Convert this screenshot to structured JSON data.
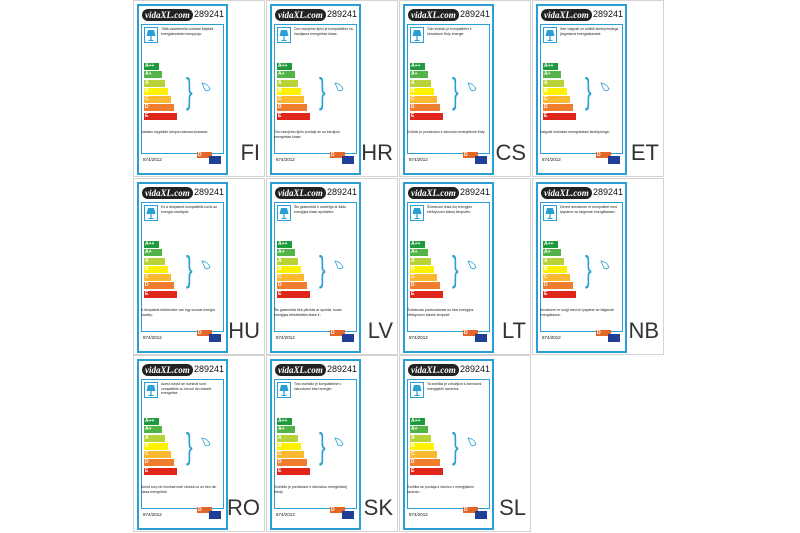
{
  "product_code": "289241",
  "brand": "vidaXL.com",
  "regulation": "874/2012",
  "classes": [
    "A++",
    "A+",
    "A",
    "B",
    "C",
    "D",
    "E"
  ],
  "class_colors": [
    "#1e9a3c",
    "#52b347",
    "#b8d338",
    "#fff200",
    "#fbb831",
    "#ef7d2d",
    "#e0251b"
  ],
  "highlight_class": "D",
  "accent": "#2a9fd3",
  "labels": [
    {
      "lang": "FI",
      "top": "Tällä valaisimella voidaan käyttää energialuokkien lamppuja:",
      "bottom": "Valaisin myydään lampun kanssa luokasta:"
    },
    {
      "lang": "HR",
      "top": "Ovo rasvjetno tijelo je kompatibilno sa žaruljama energetske klase:",
      "bottom": "Ovo rasvjetno tijelo prodaje se sa žaruljom energetske klase:"
    },
    {
      "lang": "CS",
      "top": "Toto svítidlo je kompatibilní s žárovkami třídy energie:",
      "bottom": "Svítidlo je prodáváno s žárovkou energetické třídy:"
    },
    {
      "lang": "ET",
      "top": "See valgusti on sobilik lambipirnidega järgmisest energiaklassist:",
      "bottom": "Valgusti müüakse energiaklassi lambipirniga:"
    },
    {
      "lang": "HU",
      "top": "Ez a lámpatest kompatibilis izzók az energia osztályok:",
      "bottom": "A lámpatest értékesítve van egy izzóval energia osztály:"
    },
    {
      "lang": "LV",
      "top": "Šis gaismeklis ir saderīgs ar šādu enerģijas klašu spuldzēm:",
      "bottom": "Šis gaismeklis tiek pārdots ar spuldzi, kuras enerģijas efektivitātes klase ir:"
    },
    {
      "lang": "LT",
      "top": "Šviestuvui tinka šių energijos efektyvumo klasių lemputės:",
      "bottom": "Šviestuvas parduodamas su šios energijos efektyvumo klasės lemputė:"
    },
    {
      "lang": "NB",
      "top": "Denne armaturen er kompatibel med lyspærer av følgende energiklasser:",
      "bottom": "Armaturen er solgt med en lyspære av følgende energiklasse:"
    },
    {
      "lang": "RO",
      "top": "Acest corpul de iluminat sunt compatibile cu becuri din clasele energetice:",
      "bottom": "Acest corp de iluminat este vândut cu un bec din clasa energetică:"
    },
    {
      "lang": "SK",
      "top": "Toto svietidlo je kompatibilné s žiarovkami tried energie:",
      "bottom": "Svietidlo je predávané s žiarovkou energetickej triedy:"
    },
    {
      "lang": "SL",
      "top": "Ta svetilka je združljiva s žarnicami energijskih razredov:",
      "bottom": "Svetilka se prodaja z žarnico v energijskem razredu:"
    }
  ]
}
